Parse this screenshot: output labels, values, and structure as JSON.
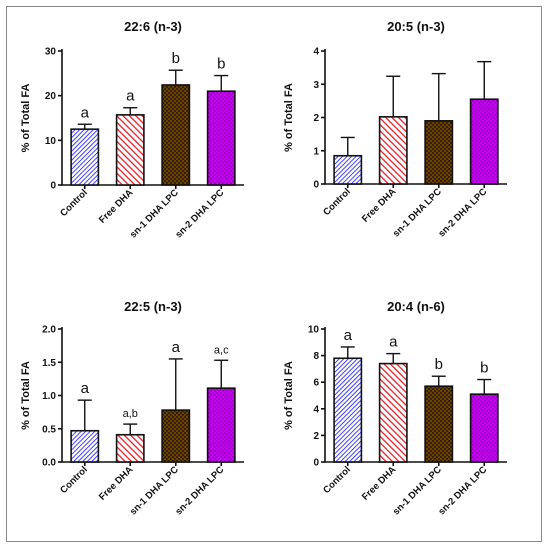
{
  "colors": {
    "control": "#3d3dff",
    "free_dha": "#e8202a",
    "sn1": "#7a4a00",
    "sn2": "#d400ff"
  },
  "chart_data": [
    {
      "type": "bar",
      "title": "22:6 (n-3)",
      "ylabel": "% of Total FA",
      "categories": [
        "Control",
        "Free DHA",
        "sn-1 DHA LPC",
        "sn-2 DHA LPC"
      ],
      "values": [
        12.5,
        15.7,
        22.4,
        21.0
      ],
      "errors": [
        1.1,
        1.6,
        3.3,
        3.5
      ],
      "annotations": [
        "a",
        "a",
        "b",
        "b"
      ],
      "ylim": [
        0,
        30
      ],
      "yticks": [
        "0",
        "10",
        "20",
        "30"
      ],
      "ytick_values": [
        0,
        10,
        20,
        30
      ]
    },
    {
      "type": "bar",
      "title": "20:5 (n-3)",
      "ylabel": "% of Total FA",
      "categories": [
        "Control",
        "Free DHA",
        "sn-1 DHA LPC",
        "sn-2 DHA LPC"
      ],
      "values": [
        0.85,
        2.02,
        1.9,
        2.55
      ],
      "errors": [
        0.55,
        1.22,
        1.42,
        1.13
      ],
      "annotations": [
        "",
        "",
        "",
        ""
      ],
      "ylim": [
        0,
        4
      ],
      "yticks": [
        "0",
        "1",
        "2",
        "3",
        "4"
      ],
      "ytick_values": [
        0,
        1,
        2,
        3,
        4
      ]
    },
    {
      "type": "bar",
      "title": "22:5 (n-3)",
      "ylabel": "% of Total FA",
      "categories": [
        "Control",
        "Free DHA",
        "sn-1 DHA LPC",
        "sn-2 DHA LPC"
      ],
      "values": [
        0.47,
        0.41,
        0.78,
        1.11
      ],
      "errors": [
        0.46,
        0.16,
        0.77,
        0.42
      ],
      "annotations": [
        "a",
        "a,b",
        "a",
        "a,c"
      ],
      "ylim": [
        0,
        2.0
      ],
      "yticks": [
        "0.0",
        "0.5",
        "1.0",
        "1.5",
        "2.0"
      ],
      "ytick_values": [
        0,
        0.5,
        1.0,
        1.5,
        2.0
      ]
    },
    {
      "type": "bar",
      "title": "20:4 (n-6)",
      "ylabel": "% of Total FA",
      "categories": [
        "Control",
        "Free DHA",
        "sn-1 DHA LPC",
        "sn-2 DHA LPC"
      ],
      "values": [
        7.8,
        7.4,
        5.7,
        5.1
      ],
      "errors": [
        0.85,
        0.75,
        0.75,
        1.1
      ],
      "annotations": [
        "a",
        "a",
        "b",
        "b"
      ],
      "ylim": [
        0,
        10
      ],
      "yticks": [
        "0",
        "2",
        "4",
        "6",
        "8",
        "10"
      ],
      "ytick_values": [
        0,
        2,
        4,
        6,
        8,
        10
      ]
    }
  ]
}
